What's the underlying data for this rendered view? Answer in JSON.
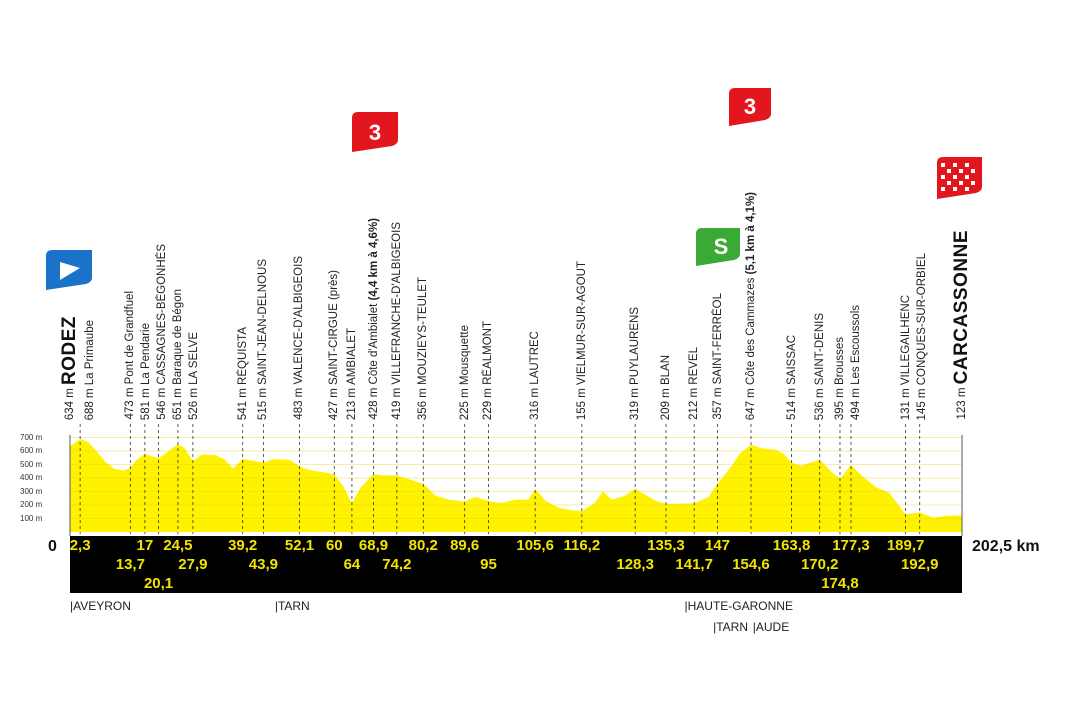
{
  "chart_data": {
    "type": "area",
    "title": "",
    "x_unit": "km",
    "y_unit": "m",
    "xlim": [
      0,
      202.5
    ],
    "ylim": [
      0,
      700
    ],
    "y_ticks": [
      "100 m",
      "200 m",
      "300 m",
      "400 m",
      "500 m",
      "600 m",
      "700 m"
    ],
    "start_label": "0",
    "end_label": "202,5 km",
    "fill_color": "#fff200",
    "band_color": "#000000",
    "km_label_color": "#f2e400",
    "profile": [
      [
        0,
        634
      ],
      [
        1,
        660
      ],
      [
        2.3,
        688
      ],
      [
        4,
        670
      ],
      [
        6,
        600
      ],
      [
        8,
        520
      ],
      [
        10,
        470
      ],
      [
        12,
        455
      ],
      [
        13.7,
        473
      ],
      [
        15,
        530
      ],
      [
        17,
        581
      ],
      [
        18.5,
        560
      ],
      [
        20.1,
        546
      ],
      [
        22,
        590
      ],
      [
        24.5,
        651
      ],
      [
        26,
        620
      ],
      [
        27.9,
        526
      ],
      [
        30,
        575
      ],
      [
        33,
        570
      ],
      [
        35,
        540
      ],
      [
        37,
        470
      ],
      [
        39.2,
        541
      ],
      [
        41,
        530
      ],
      [
        43.9,
        515
      ],
      [
        46,
        540
      ],
      [
        50,
        535
      ],
      [
        52.1,
        483
      ],
      [
        55,
        455
      ],
      [
        58,
        440
      ],
      [
        60,
        427
      ],
      [
        62,
        340
      ],
      [
        64,
        213
      ],
      [
        66,
        330
      ],
      [
        68.9,
        428
      ],
      [
        71,
        420
      ],
      [
        74.2,
        419
      ],
      [
        77,
        390
      ],
      [
        80.2,
        356
      ],
      [
        83,
        270
      ],
      [
        86,
        240
      ],
      [
        89.6,
        225
      ],
      [
        92,
        260
      ],
      [
        95,
        229
      ],
      [
        98,
        215
      ],
      [
        101,
        240
      ],
      [
        104,
        240
      ],
      [
        105.6,
        316
      ],
      [
        108,
        230
      ],
      [
        111,
        180
      ],
      [
        114,
        160
      ],
      [
        116.2,
        155
      ],
      [
        119,
        210
      ],
      [
        121,
        300
      ],
      [
        123,
        240
      ],
      [
        126,
        270
      ],
      [
        128.3,
        319
      ],
      [
        131,
        270
      ],
      [
        133,
        230
      ],
      [
        135.3,
        209
      ],
      [
        138,
        210
      ],
      [
        141.7,
        212
      ],
      [
        145,
        260
      ],
      [
        147,
        357
      ],
      [
        150,
        480
      ],
      [
        152,
        580
      ],
      [
        154.6,
        647
      ],
      [
        157,
        620
      ],
      [
        160,
        610
      ],
      [
        162,
        580
      ],
      [
        163.8,
        514
      ],
      [
        166,
        490
      ],
      [
        170.2,
        536
      ],
      [
        173,
        440
      ],
      [
        174.8,
        395
      ],
      [
        177.3,
        494
      ],
      [
        180,
        410
      ],
      [
        183,
        330
      ],
      [
        186,
        290
      ],
      [
        189.7,
        131
      ],
      [
        192.9,
        145
      ],
      [
        196,
        105
      ],
      [
        199,
        120
      ],
      [
        202.5,
        123
      ]
    ],
    "waypoints": [
      {
        "km": 0,
        "elev": "634 m",
        "name": "RODEZ",
        "style": "big"
      },
      {
        "km": 2.3,
        "elev": "688 m",
        "name": "La Primaube"
      },
      {
        "km": 13.7,
        "elev": "473 m",
        "name": "Pont de Grandfuel"
      },
      {
        "km": 17,
        "elev": "581 m",
        "name": "La Pendarie"
      },
      {
        "km": 20.1,
        "elev": "546 m",
        "name": "CASSAGNES-BÉGONHÈS"
      },
      {
        "km": 24.5,
        "elev": "651 m",
        "name": "Baraque de Bégon"
      },
      {
        "km": 27.9,
        "elev": "526 m",
        "name": "LA SELVE"
      },
      {
        "km": 39.2,
        "elev": "541 m",
        "name": "RÉQUISTA"
      },
      {
        "km": 43.9,
        "elev": "515 m",
        "name": "SAINT-JEAN-DELNOUS"
      },
      {
        "km": 52.1,
        "elev": "483 m",
        "name": "VALENCE-D'ALBIGEOIS"
      },
      {
        "km": 60,
        "elev": "427 m",
        "name": "SAINT-CIRGUE (près)"
      },
      {
        "km": 64,
        "elev": "213 m",
        "name": "AMBIALET"
      },
      {
        "km": 68.9,
        "elev": "428 m",
        "name": "Côte d'Ambialet",
        "detail": "(4,4 km à 4,6%)"
      },
      {
        "km": 74.2,
        "elev": "419 m",
        "name": "VILLEFRANCHE-D'ALBIGEOIS"
      },
      {
        "km": 80.2,
        "elev": "356 m",
        "name": "MOUZIEYS-TEULET"
      },
      {
        "km": 89.6,
        "elev": "225 m",
        "name": "Mousquette"
      },
      {
        "km": 95,
        "elev": "229 m",
        "name": "RÉALMONT"
      },
      {
        "km": 105.6,
        "elev": "316 m",
        "name": "LAUTREC"
      },
      {
        "km": 116.2,
        "elev": "155 m",
        "name": "VIELMUR-SUR-AGOUT"
      },
      {
        "km": 128.3,
        "elev": "319 m",
        "name": "PUYLAURENS"
      },
      {
        "km": 135.3,
        "elev": "209 m",
        "name": "BLAN"
      },
      {
        "km": 141.7,
        "elev": "212 m",
        "name": "REVEL"
      },
      {
        "km": 147,
        "elev": "357 m",
        "name": "SAINT-FERRÉOL"
      },
      {
        "km": 154.6,
        "elev": "647 m",
        "name": "Côte des Cammazes",
        "detail": "(5,1 km à 4,1%)"
      },
      {
        "km": 163.8,
        "elev": "514 m",
        "name": "SAISSAC"
      },
      {
        "km": 170.2,
        "elev": "536 m",
        "name": "SAINT-DENIS"
      },
      {
        "km": 174.8,
        "elev": "395 m",
        "name": "Brousses"
      },
      {
        "km": 177.3,
        "elev": "494 m",
        "name": "Les Escoussols"
      },
      {
        "km": 189.7,
        "elev": "131 m",
        "name": "VILLEGAILHENC"
      },
      {
        "km": 192.9,
        "elev": "145 m",
        "name": "CONQUES-SUR-ORBIEL"
      },
      {
        "km": 202.5,
        "elev": "123 m",
        "name": "CARCASSONNE",
        "style": "big"
      }
    ],
    "km_labels": [
      {
        "km": 2.3,
        "text": "2,3",
        "row": 0
      },
      {
        "km": 13.7,
        "text": "13,7",
        "row": 1
      },
      {
        "km": 17,
        "text": "17",
        "row": 0
      },
      {
        "km": 20.1,
        "text": "20,1",
        "row": 2
      },
      {
        "km": 24.5,
        "text": "24,5",
        "row": 0
      },
      {
        "km": 27.9,
        "text": "27,9",
        "row": 1
      },
      {
        "km": 39.2,
        "text": "39,2",
        "row": 0
      },
      {
        "km": 43.9,
        "text": "43,9",
        "row": 1
      },
      {
        "km": 52.1,
        "text": "52,1",
        "row": 0
      },
      {
        "km": 60,
        "text": "60",
        "row": 0
      },
      {
        "km": 64,
        "text": "64",
        "row": 1
      },
      {
        "km": 68.9,
        "text": "68,9",
        "row": 0
      },
      {
        "km": 74.2,
        "text": "74,2",
        "row": 1
      },
      {
        "km": 80.2,
        "text": "80,2",
        "row": 0
      },
      {
        "km": 89.6,
        "text": "89,6",
        "row": 0
      },
      {
        "km": 95,
        "text": "95",
        "row": 1
      },
      {
        "km": 105.6,
        "text": "105,6",
        "row": 0
      },
      {
        "km": 116.2,
        "text": "116,2",
        "row": 0
      },
      {
        "km": 128.3,
        "text": "128,3",
        "row": 1
      },
      {
        "km": 135.3,
        "text": "135,3",
        "row": 0
      },
      {
        "km": 141.7,
        "text": "141,7",
        "row": 1
      },
      {
        "km": 147,
        "text": "147",
        "row": 0
      },
      {
        "km": 154.6,
        "text": "154,6",
        "row": 1
      },
      {
        "km": 163.8,
        "text": "163,8",
        "row": 0
      },
      {
        "km": 170.2,
        "text": "170,2",
        "row": 1
      },
      {
        "km": 174.8,
        "text": "174,8",
        "row": 2
      },
      {
        "km": 177.3,
        "text": "177,3",
        "row": 0
      },
      {
        "km": 189.7,
        "text": "189,7",
        "row": 0
      },
      {
        "km": 192.9,
        "text": "192,9",
        "row": 1
      }
    ],
    "departments": [
      {
        "km": 0,
        "text": "|AVEYRON",
        "row": 0
      },
      {
        "km": 46.5,
        "text": "|TARN",
        "row": 0
      },
      {
        "km": 139.5,
        "text": "|HAUTE-GARONNE",
        "row": 0
      },
      {
        "km": 146,
        "text": "|TARN",
        "row": 1
      },
      {
        "km": 155,
        "text": "|AUDE",
        "row": 1
      }
    ],
    "badges": {
      "start": {
        "icon": "start-flag-icon",
        "color": "#1a73c8"
      },
      "climb1": {
        "text": "3",
        "km": 68.9,
        "color": "#e3161d"
      },
      "climb2": {
        "text": "3",
        "km": 154.6,
        "color": "#e3161d"
      },
      "sprint": {
        "text": "S",
        "km": 147,
        "color": "#3aa935"
      },
      "finish": {
        "icon": "checkered-flag-icon",
        "color": "#e3161d"
      }
    }
  }
}
